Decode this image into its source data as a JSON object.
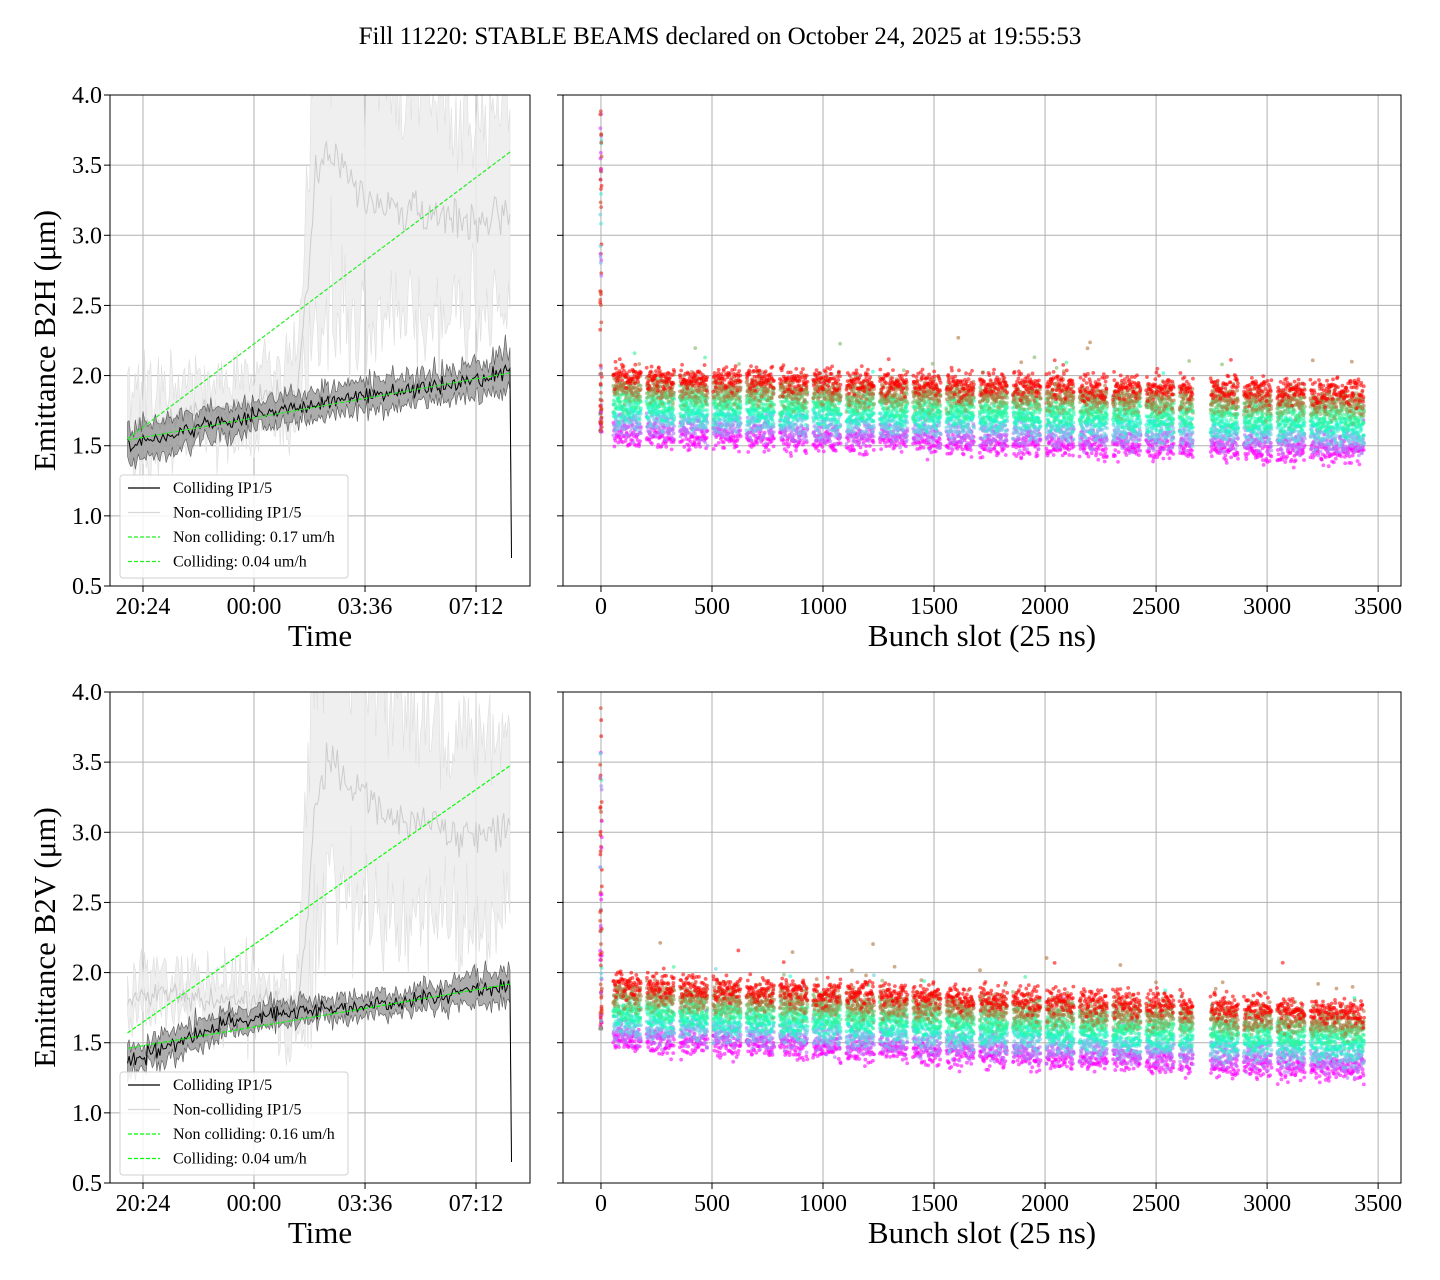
{
  "title": "Fill 11220: STABLE BEAMS declared on October 24, 2025 at 19:55:53",
  "chart_data": [
    {
      "type": "line",
      "panel": "top-left",
      "xlabel": "Time",
      "ylabel": "Emittance B2H (μm)",
      "ylim": [
        0.5,
        4.0
      ],
      "yticks": [
        "0.5",
        "1.0",
        "1.5",
        "2.0",
        "2.5",
        "3.0",
        "3.5",
        "4.0"
      ],
      "xlim_hours_from_20_24": [
        -1.07,
        12.55
      ],
      "xticks": [
        {
          "label": "20:24",
          "hours": 0
        },
        {
          "label": "00:00",
          "hours": 3.6
        },
        {
          "label": "03:36",
          "hours": 7.2
        },
        {
          "label": "07:12",
          "hours": 10.8
        }
      ],
      "grid": true,
      "legend_placement": "lower-left",
      "legend": [
        "Colliding IP1/5",
        "Non-colliding IP1/5",
        "Non colliding: 0.17 um/h",
        "Colliding: 0.04 um/h"
      ],
      "series": [
        {
          "name": "Non-colliding IP1/5",
          "hours": [
            -0.5,
            1,
            2,
            3,
            4,
            5,
            5.3,
            5.6,
            6,
            7,
            8,
            9,
            10,
            11,
            11.9
          ],
          "values": [
            1.6,
            1.7,
            1.75,
            1.75,
            1.85,
            1.9,
            2.6,
            3.4,
            3.6,
            3.3,
            3.2,
            3.15,
            3.1,
            3.05,
            3.15
          ],
          "band": [
            0.3,
            0.2,
            0.2,
            0.2,
            0.2,
            0.25,
            0.8,
            1.1,
            1.2,
            1.0,
            0.9,
            0.9,
            0.8,
            0.75,
            0.75
          ],
          "color": "#cccccc"
        },
        {
          "name": "Colliding IP1/5",
          "hours": [
            -0.5,
            1,
            3,
            5,
            7,
            9,
            11,
            11.9,
            11.95
          ],
          "values": [
            1.5,
            1.58,
            1.68,
            1.78,
            1.85,
            1.9,
            1.98,
            2.05,
            0.7
          ],
          "band": [
            0.13,
            0.12,
            0.1,
            0.1,
            0.1,
            0.1,
            0.12,
            0.15,
            0.0
          ],
          "color": "#000000"
        },
        {
          "name": "Non colliding: 0.17 um/h",
          "start": [
            -0.5,
            1.55
          ],
          "end": [
            11.94,
            3.6
          ],
          "color": "#22ee22"
        },
        {
          "name": "Colliding: 0.04 um/h",
          "start": [
            -0.5,
            1.54
          ],
          "end": [
            11.94,
            2.02
          ],
          "color": "#22ee22"
        }
      ]
    },
    {
      "type": "scatter",
      "panel": "top-right",
      "xlabel": "Bunch slot (25 ns)",
      "ylim": [
        0.5,
        4.0
      ],
      "xlim": [
        -171,
        3603
      ],
      "xticks": [
        "0",
        "500",
        "1000",
        "1500",
        "2000",
        "2500",
        "3000",
        "3500"
      ],
      "grid": true,
      "colormap": "rainbow",
      "train_starts": [
        55,
        205,
        355,
        505,
        655,
        805,
        955,
        1105,
        1255,
        1405,
        1555,
        1705,
        1855,
        2005,
        2155,
        2305,
        2455,
        2605,
        2745,
        2895,
        3045,
        3195,
        3325
      ],
      "train_length": 125,
      "band_low": [
        1.58,
        1.45
      ],
      "band_high": [
        2.0,
        1.88
      ],
      "pilot": {
        "slot": 0,
        "range": [
          1.6,
          3.9
        ]
      }
    },
    {
      "type": "line",
      "panel": "bottom-left",
      "xlabel": "Time",
      "ylabel": "Emittance B2V (μm)",
      "ylim": [
        0.5,
        4.0
      ],
      "yticks": [
        "0.5",
        "1.0",
        "1.5",
        "2.0",
        "2.5",
        "3.0",
        "3.5",
        "4.0"
      ],
      "xlim_hours_from_20_24": [
        -1.07,
        12.55
      ],
      "xticks": [
        {
          "label": "20:24",
          "hours": 0
        },
        {
          "label": "00:00",
          "hours": 3.6
        },
        {
          "label": "03:36",
          "hours": 7.2
        },
        {
          "label": "07:12",
          "hours": 10.8
        }
      ],
      "grid": true,
      "legend_placement": "lower-left",
      "legend": [
        "Colliding IP1/5",
        "Non-colliding IP1/5",
        "Non colliding: 0.16 um/h",
        "Colliding: 0.04 um/h"
      ],
      "series": [
        {
          "name": "Non-colliding IP1/5",
          "hours": [
            -0.5,
            1,
            2,
            3,
            4,
            5,
            5.3,
            5.6,
            6,
            7,
            8,
            9,
            10,
            11,
            11.9
          ],
          "values": [
            1.8,
            1.85,
            1.8,
            1.8,
            1.8,
            1.75,
            2.3,
            3.2,
            3.5,
            3.3,
            3.1,
            3.05,
            3.0,
            3.0,
            3.05
          ],
          "band": [
            0.15,
            0.15,
            0.15,
            0.15,
            0.15,
            0.2,
            0.8,
            1.1,
            1.1,
            0.9,
            0.8,
            0.75,
            0.7,
            0.7,
            0.7
          ],
          "color": "#cccccc"
        },
        {
          "name": "Colliding IP1/5",
          "hours": [
            -0.5,
            1,
            3,
            5,
            7,
            9,
            11,
            11.9,
            11.95
          ],
          "values": [
            1.35,
            1.5,
            1.65,
            1.72,
            1.76,
            1.82,
            1.88,
            1.9,
            0.65
          ],
          "band": [
            0.1,
            0.1,
            0.08,
            0.08,
            0.08,
            0.08,
            0.1,
            0.12,
            0.0
          ],
          "color": "#000000"
        },
        {
          "name": "Non colliding: 0.16 um/h",
          "start": [
            -0.5,
            1.57
          ],
          "end": [
            11.94,
            3.48
          ],
          "color": "#00ff00"
        },
        {
          "name": "Colliding: 0.04 um/h",
          "start": [
            -0.5,
            1.46
          ],
          "end": [
            11.94,
            1.92
          ],
          "color": "#00ff00"
        }
      ]
    },
    {
      "type": "scatter",
      "panel": "bottom-right",
      "xlabel": "Bunch slot (25 ns)",
      "ylim": [
        0.5,
        4.0
      ],
      "xlim": [
        -171,
        3603
      ],
      "xticks": [
        "0",
        "500",
        "1000",
        "1500",
        "2000",
        "2500",
        "3000",
        "3500"
      ],
      "grid": true,
      "colormap": "rainbow",
      "train_starts": [
        55,
        205,
        355,
        505,
        655,
        805,
        955,
        1105,
        1255,
        1405,
        1555,
        1705,
        1855,
        2005,
        2155,
        2305,
        2455,
        2605,
        2745,
        2895,
        3045,
        3195,
        3325
      ],
      "train_length": 125,
      "band_low": [
        1.52,
        1.3
      ],
      "band_high": [
        1.92,
        1.72
      ],
      "pilot": {
        "slot": 0,
        "range": [
          1.6,
          3.9
        ]
      }
    }
  ]
}
